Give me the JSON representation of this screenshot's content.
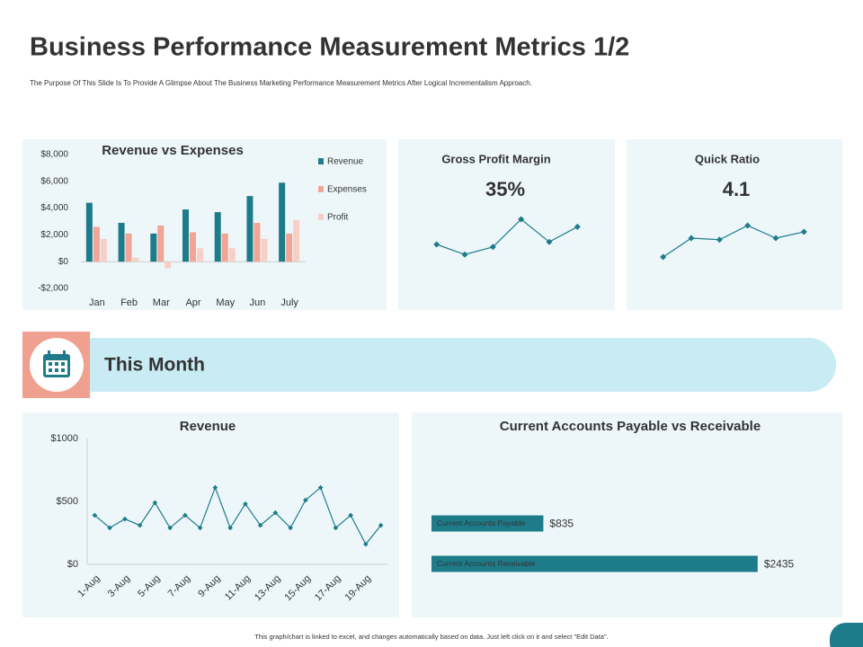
{
  "header": {
    "title": "Business Performance Measurement Metrics 1/2",
    "subtitle": "The Purpose Of This Slide Is To Provide A Glimpse About The Business Marketing Performance Measurement Metrics After Logical Incrementalism Approach."
  },
  "section": {
    "title": "This Month"
  },
  "footer": "This graph/chart is linked to excel, and changes automatically based on data. Just left click on it and select \"Edit Data\".",
  "chart_data": [
    {
      "type": "bar",
      "title": "Revenue vs Expenses",
      "categories": [
        "Jan",
        "Feb",
        "Mar",
        "Apr",
        "May",
        "Jun",
        "July"
      ],
      "series": [
        {
          "name": "Revenue",
          "color": "#1d7b8a",
          "values": [
            4400,
            2900,
            2100,
            3900,
            3700,
            4900,
            5900
          ]
        },
        {
          "name": "Expenses",
          "color": "#f2a594",
          "values": [
            2600,
            2100,
            2700,
            2200,
            2100,
            2900,
            2100
          ]
        },
        {
          "name": "Profit",
          "color": "#f7cfc6",
          "values": [
            1700,
            300,
            -500,
            1000,
            1000,
            1700,
            3100
          ]
        }
      ],
      "ylim": [
        -2000,
        8000
      ],
      "yticks": [
        {
          "value": -2000,
          "label": "-$2,000"
        },
        {
          "value": 0,
          "label": "$0"
        },
        {
          "value": 2000,
          "label": "$2,000"
        },
        {
          "value": 4000,
          "label": "$4,000"
        },
        {
          "value": 6000,
          "label": "$6,000"
        },
        {
          "value": 8000,
          "label": "$8,000"
        }
      ],
      "grid": false,
      "legend": "right"
    },
    {
      "type": "sparkline",
      "title": "Gross Profit Margin",
      "headline": "35%",
      "values": [
        30,
        26,
        29,
        40,
        31,
        37
      ],
      "ylim": [
        20,
        45
      ],
      "color": "#1d7b8a"
    },
    {
      "type": "sparkline",
      "title": "Quick Ratio",
      "headline": "4.1",
      "values": [
        3.4,
        4.0,
        3.95,
        4.4,
        4.0,
        4.2
      ],
      "ylim": [
        3,
        5
      ],
      "color": "#1d7b8a"
    },
    {
      "type": "line",
      "title": "Revenue",
      "categories": [
        "1-Aug",
        null,
        "3-Aug",
        null,
        "5-Aug",
        null,
        "7-Aug",
        null,
        "9-Aug",
        null,
        "11-Aug",
        null,
        "13-Aug",
        null,
        "15-Aug",
        null,
        "17-Aug",
        null,
        "19-Aug",
        null
      ],
      "values": [
        390,
        290,
        360,
        310,
        490,
        290,
        390,
        290,
        610,
        290,
        480,
        310,
        410,
        290,
        510,
        610,
        290,
        390,
        160,
        310
      ],
      "ylim": [
        0,
        1000
      ],
      "yticks": [
        {
          "value": 0,
          "label": "$0"
        },
        {
          "value": 500,
          "label": "$500"
        },
        {
          "value": 1000,
          "label": "$1000"
        }
      ],
      "color": "#1d7b8a"
    },
    {
      "type": "hbar",
      "title": "Current Accounts Payable vs Receivable",
      "categories": [
        "Current Accounts Payable",
        "Current Accounts Receivable"
      ],
      "values": [
        835,
        2435
      ],
      "value_labels": [
        "$835",
        "$2435"
      ],
      "xlim": [
        0,
        3000
      ],
      "color": "#1d7b8a"
    }
  ]
}
